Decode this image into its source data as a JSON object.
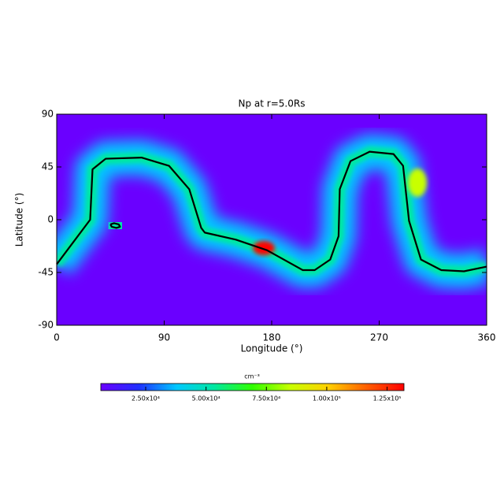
{
  "chart_data": {
    "type": "heatmap-contour",
    "title": "Np at r=5.0Rs",
    "xlabel": "Longitude (°)",
    "ylabel": "Latitude (°)",
    "xlim": [
      0,
      360
    ],
    "xticks": [
      0,
      90,
      180,
      270,
      360
    ],
    "ylim": [
      -90,
      90
    ],
    "yticks": [
      -90,
      -45,
      0,
      45,
      90
    ],
    "series": [
      {
        "color": "#000000",
        "x": [
          0,
          28,
          30,
          41,
          71,
          94,
          111,
          121,
          124,
          150,
          176,
          206,
          216,
          229,
          236,
          237,
          246,
          262,
          282,
          290,
          295,
          305,
          322,
          341,
          360
        ],
        "values": [
          -38,
          0,
          43,
          52,
          53,
          46,
          26,
          -7,
          -11,
          -17,
          -26,
          -43,
          -43,
          -34,
          -14,
          26,
          50,
          58,
          56,
          46,
          -1,
          -34,
          -43,
          -44,
          -40
        ]
      },
      {
        "color": "#000000",
        "x": [
          45,
          48,
          52,
          53,
          50,
          46,
          45
        ],
        "values": [
          -4,
          -3,
          -4,
          -6,
          -7,
          -6,
          -4
        ]
      }
    ],
    "colorbar": {
      "label": "cm⁻³",
      "lim": [
        6400,
        132000
      ],
      "colormap": [
        "#6a00ff",
        "#2030ff",
        "#00c8ff",
        "#00e8a0",
        "#30ff00",
        "#c8ff00",
        "#ffd000",
        "#ff6000",
        "#ff0000"
      ],
      "ticks": [
        {
          "value": 25000,
          "label": "2.50x10⁴"
        },
        {
          "value": 50000,
          "label": "5.00x10⁴"
        },
        {
          "value": 75000,
          "label": "7.50x10⁴"
        },
        {
          "value": 100000,
          "label": "1.00x10⁵"
        },
        {
          "value": 125000,
          "label": "1.25x10⁵"
        }
      ]
    }
  }
}
